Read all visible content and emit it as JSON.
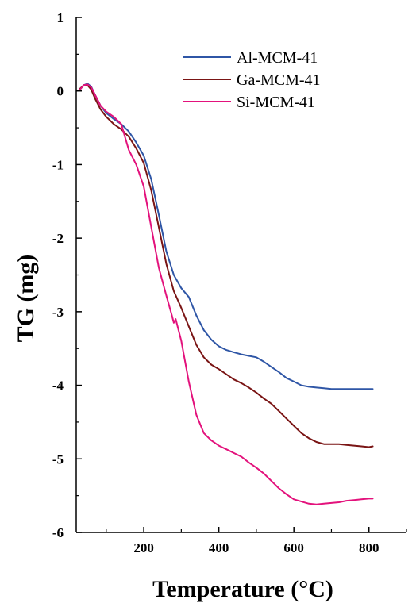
{
  "chart_data": {
    "type": "line",
    "title": "",
    "xlabel": "Temperature (°C)",
    "ylabel": "TG (mg)",
    "xlim": [
      20,
      900
    ],
    "ylim": [
      -6,
      1
    ],
    "xticks": [
      200,
      400,
      600,
      800
    ],
    "xtick_labels": [
      "200",
      "400",
      "600",
      "800"
    ],
    "yticks": [
      1,
      0,
      -1,
      -2,
      -3,
      -4,
      -5,
      -6
    ],
    "ytick_labels": [
      "1",
      "0",
      "-1",
      "-2",
      "-3",
      "-4",
      "-5",
      "-6"
    ],
    "grid": false,
    "legend_position": "top-right",
    "series": [
      {
        "name": "Al-MCM-41",
        "color": "#2f56a6",
        "x": [
          30,
          40,
          50,
          60,
          70,
          85,
          100,
          120,
          140,
          160,
          180,
          200,
          220,
          240,
          260,
          280,
          300,
          320,
          340,
          360,
          380,
          400,
          420,
          440,
          460,
          480,
          500,
          520,
          540,
          560,
          580,
          600,
          620,
          640,
          660,
          680,
          700,
          720,
          740,
          760,
          780,
          800,
          810
        ],
        "y": [
          0.02,
          0.08,
          0.1,
          0.06,
          -0.05,
          -0.2,
          -0.3,
          -0.38,
          -0.45,
          -0.55,
          -0.7,
          -0.88,
          -1.2,
          -1.68,
          -2.18,
          -2.5,
          -2.68,
          -2.8,
          -3.05,
          -3.25,
          -3.38,
          -3.47,
          -3.52,
          -3.55,
          -3.58,
          -3.6,
          -3.62,
          -3.68,
          -3.75,
          -3.82,
          -3.9,
          -3.95,
          -4.0,
          -4.02,
          -4.03,
          -4.04,
          -4.05,
          -4.05,
          -4.05,
          -4.05,
          -4.05,
          -4.05,
          -4.05
        ]
      },
      {
        "name": "Ga-MCM-41",
        "color": "#7a1515",
        "x": [
          30,
          40,
          50,
          60,
          70,
          85,
          100,
          120,
          140,
          160,
          180,
          200,
          220,
          240,
          260,
          280,
          300,
          320,
          340,
          360,
          380,
          400,
          420,
          440,
          460,
          480,
          500,
          520,
          540,
          560,
          580,
          600,
          620,
          640,
          660,
          680,
          700,
          720,
          740,
          760,
          780,
          800,
          810
        ],
        "y": [
          0.03,
          0.08,
          0.08,
          0.02,
          -0.1,
          -0.25,
          -0.35,
          -0.45,
          -0.52,
          -0.62,
          -0.78,
          -0.98,
          -1.35,
          -1.85,
          -2.35,
          -2.72,
          -2.95,
          -3.2,
          -3.45,
          -3.62,
          -3.72,
          -3.78,
          -3.85,
          -3.92,
          -3.97,
          -4.03,
          -4.1,
          -4.18,
          -4.25,
          -4.35,
          -4.45,
          -4.55,
          -4.65,
          -4.72,
          -4.77,
          -4.8,
          -4.8,
          -4.8,
          -4.81,
          -4.82,
          -4.83,
          -4.84,
          -4.83
        ]
      },
      {
        "name": "Si-MCM-41",
        "color": "#e3127c",
        "x": [
          30,
          40,
          50,
          60,
          70,
          85,
          100,
          120,
          140,
          160,
          180,
          200,
          220,
          240,
          260,
          275,
          280,
          285,
          300,
          320,
          340,
          360,
          380,
          400,
          420,
          440,
          460,
          480,
          500,
          520,
          540,
          560,
          580,
          600,
          620,
          640,
          660,
          680,
          700,
          720,
          740,
          760,
          780,
          800,
          810
        ],
        "y": [
          0.02,
          0.08,
          0.09,
          0.05,
          -0.05,
          -0.2,
          -0.28,
          -0.35,
          -0.45,
          -0.8,
          -1.0,
          -1.3,
          -1.85,
          -2.4,
          -2.78,
          -3.05,
          -3.15,
          -3.1,
          -3.4,
          -3.95,
          -4.4,
          -4.65,
          -4.75,
          -4.82,
          -4.87,
          -4.92,
          -4.97,
          -5.05,
          -5.12,
          -5.2,
          -5.3,
          -5.4,
          -5.48,
          -5.55,
          -5.58,
          -5.61,
          -5.62,
          -5.61,
          -5.6,
          -5.59,
          -5.57,
          -5.56,
          -5.55,
          -5.54,
          -5.54
        ]
      }
    ]
  }
}
